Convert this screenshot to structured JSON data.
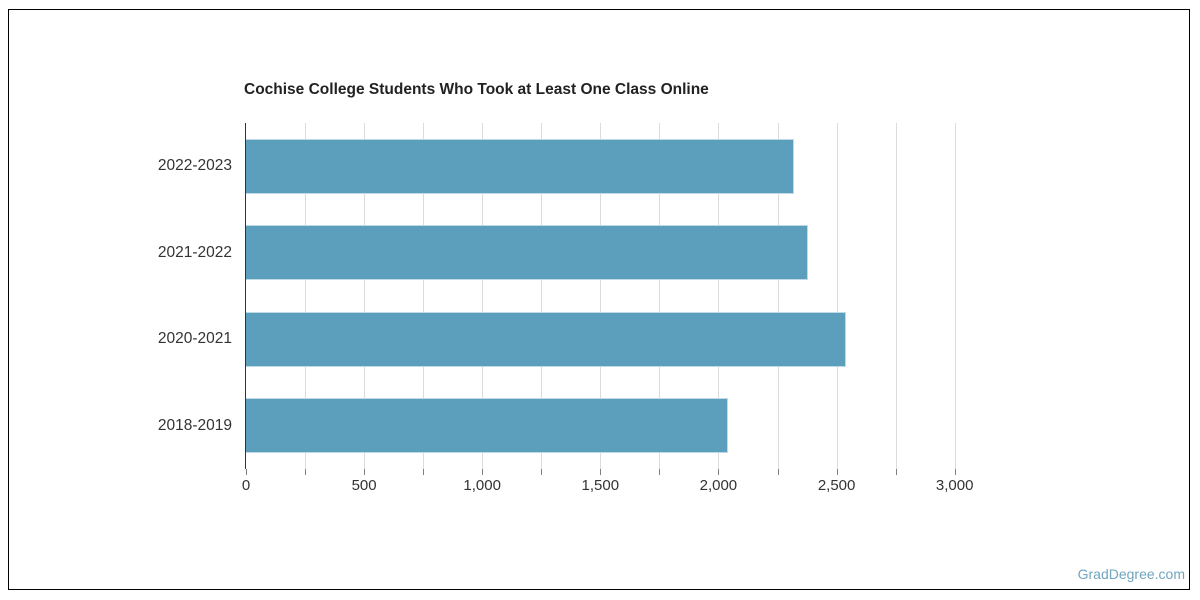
{
  "chart_data": {
    "type": "bar",
    "orientation": "horizontal",
    "title": "Cochise College Students Who Took at Least One Class Online",
    "categories": [
      "2022-2023",
      "2021-2022",
      "2020-2021",
      "2018-2019"
    ],
    "values": [
      2320,
      2380,
      2540,
      2040
    ],
    "xlabel": "",
    "ylabel": "",
    "legend": false,
    "grid": true,
    "value_axis": {
      "min": 0,
      "max": 3175,
      "grid_max": 3000,
      "minor_tick_interval": 250,
      "ticks": [
        {
          "value": 0,
          "label": "0"
        },
        {
          "value": 500,
          "label": "500"
        },
        {
          "value": 1000,
          "label": "1,000"
        },
        {
          "value": 1500,
          "label": "1,500"
        },
        {
          "value": 2000,
          "label": "2,000"
        },
        {
          "value": 2500,
          "label": "2,500"
        },
        {
          "value": 3000,
          "label": "3,000"
        }
      ]
    },
    "colors": {
      "bar": "#5B9FBC",
      "bar_border": "#BFDAE6",
      "gridline": "#DBDBDB",
      "axis_line": "#333333",
      "tick": "#808080",
      "label": "#333333",
      "title": "#222222"
    }
  },
  "watermark": {
    "text": "GradDegree.com",
    "color": "#6FA5BF"
  }
}
